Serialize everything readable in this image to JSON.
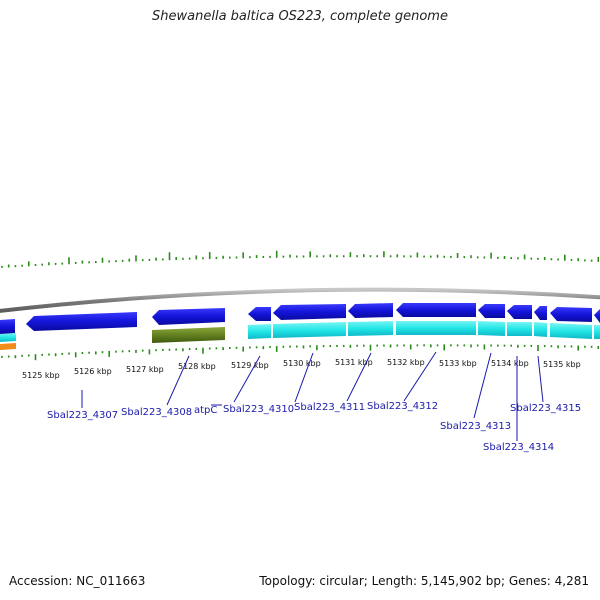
{
  "title": "Shewanella baltica OS223, complete genome",
  "accession": "Accession: NC_011663",
  "topology": "Topology: circular; Length: 5,145,902 bp; Genes: 4,281",
  "colors": {
    "forward_cds": "#1a1ae6",
    "reverse_cds": "#22e6e6",
    "rna": "#5a7a1a",
    "backbone": "#8c8c8c",
    "gc_skew": "#2a8a1a",
    "label": "#1a1aaa",
    "orange_feature": "#f28c1a"
  },
  "kbp_ticks": [
    "5125 kbp",
    "5126 kbp",
    "5127 kbp",
    "5128 kbp",
    "5129 kbp",
    "5130 kbp",
    "5131 kbp",
    "5132 kbp",
    "5133 kbp",
    "5134 kbp",
    "5135 kbp"
  ],
  "gene_labels": [
    "Sbal223_4307",
    "Sbal223_4308",
    "atpC",
    "Sbal223_4310",
    "Sbal223_4311",
    "Sbal223_4312",
    "Sbal223_4313",
    "Sbal223_4314",
    "Sbal223_4315"
  ]
}
